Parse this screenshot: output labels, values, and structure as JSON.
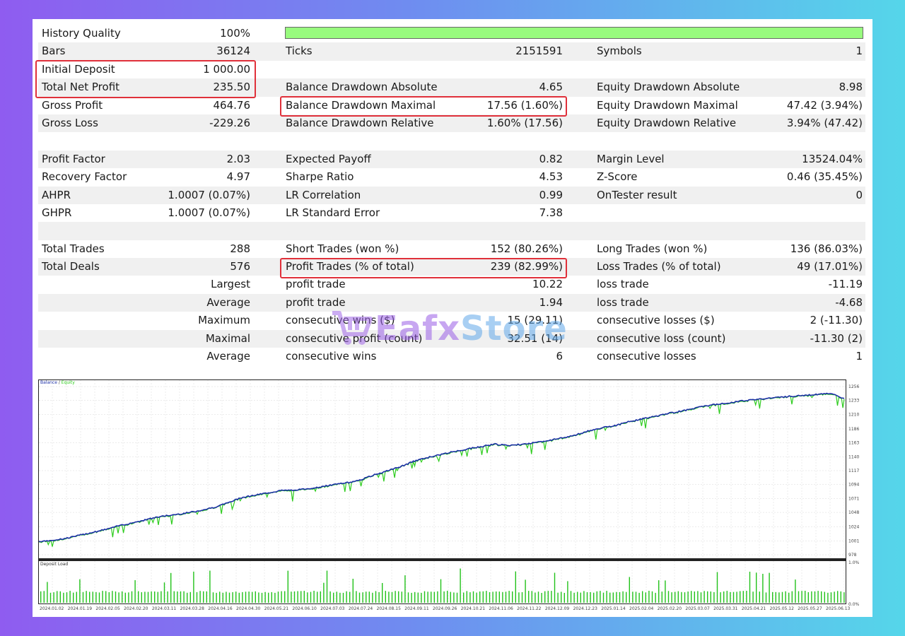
{
  "rows": [
    {
      "l1": "History Quality",
      "v1": "100%",
      "bar": true
    },
    {
      "l1": "Bars",
      "v1": "36124",
      "l2": "Ticks",
      "v2": "2151591",
      "l3": "Symbols",
      "v3": "1"
    },
    {
      "l1": "Initial Deposit",
      "v1": "1 000.00"
    },
    {
      "l1": "Total Net Profit",
      "v1": "235.50",
      "l2": "Balance Drawdown Absolute",
      "v2": "4.65",
      "l3": "Equity Drawdown Absolute",
      "v3": "8.98"
    },
    {
      "l1": "Gross Profit",
      "v1": "464.76",
      "l2": "Balance Drawdown Maximal",
      "v2": "17.56 (1.60%)",
      "l3": "Equity Drawdown Maximal",
      "v3": "47.42 (3.94%)"
    },
    {
      "l1": "Gross Loss",
      "v1": "-229.26",
      "l2": "Balance Drawdown Relative",
      "v2": "1.60% (17.56)",
      "l3": "Equity Drawdown Relative",
      "v3": "3.94% (47.42)"
    },
    {},
    {
      "l1": "Profit Factor",
      "v1": "2.03",
      "l2": "Expected Payoff",
      "v2": "0.82",
      "l3": "Margin Level",
      "v3": "13524.04%"
    },
    {
      "l1": "Recovery Factor",
      "v1": "4.97",
      "l2": "Sharpe Ratio",
      "v2": "4.53",
      "l3": "Z-Score",
      "v3": "0.46 (35.45%)"
    },
    {
      "l1": "AHPR",
      "v1": "1.0007 (0.07%)",
      "l2": "LR Correlation",
      "v2": "0.99",
      "l3": "OnTester result",
      "v3": "0"
    },
    {
      "l1": "GHPR",
      "v1": "1.0007 (0.07%)",
      "l2": "LR Standard Error",
      "v2": "7.38"
    },
    {},
    {
      "l1": "Total Trades",
      "v1": "288",
      "l2": "Short Trades (won %)",
      "v2": "152 (80.26%)",
      "l3": "Long Trades (won %)",
      "v3": "136 (86.03%)"
    },
    {
      "l1": "Total Deals",
      "v1": "576",
      "l2": "Profit Trades (% of total)",
      "v2": "239 (82.99%)",
      "l3": "Loss Trades (% of total)",
      "v3": "49 (17.01%)"
    },
    {
      "sl": "Largest",
      "l2": "profit trade",
      "v2": "10.22",
      "l3": "loss trade",
      "v3": "-11.19"
    },
    {
      "sl": "Average",
      "l2": "profit trade",
      "v2": "1.94",
      "l3": "loss trade",
      "v3": "-4.68"
    },
    {
      "sl": "Maximum",
      "l2": "consecutive wins ($)",
      "v2": "15 (29.11)",
      "l3": "consecutive losses ($)",
      "v3": "2 (-11.30)"
    },
    {
      "sl": "Maximal",
      "l2": "consecutive profit (count)",
      "v2": "32.51 (14)",
      "l3": "consecutive loss (count)",
      "v3": "-11.30 (2)"
    },
    {
      "sl": "Average",
      "l2": "consecutive wins",
      "v2": "6",
      "l3": "consecutive losses",
      "v3": "1"
    }
  ],
  "highlight_color": "#e0303a",
  "quality_bar_color": "#98fb7e",
  "watermark": {
    "part1": "Eafx",
    "part2": "Store",
    "icon": "shopping-cart-icon"
  },
  "chart_data": [
    {
      "type": "line",
      "legend": [
        "Balance",
        "Equity"
      ],
      "series_colors": {
        "Balance": "#1c2fa6",
        "Equity": "#2ecc1e"
      },
      "y_ticks": [
        "1256",
        "1233",
        "1210",
        "1186",
        "1163",
        "1140",
        "1117",
        "1094",
        "1071",
        "1048",
        "1024",
        "1001",
        "978"
      ],
      "ylim": [
        978,
        1256
      ],
      "x_ticks": [
        "2024.01.02",
        "2024.01.19",
        "2024.02.05",
        "2024.02.20",
        "2024.03.11",
        "2024.03.28",
        "2024.04.16",
        "2024.04.30",
        "2024.05.21",
        "2024.06.10",
        "2024.07.03",
        "2024.07.24",
        "2024.08.15",
        "2024.09.11",
        "2024.09.26",
        "2024.10.21",
        "2024.11.06",
        "2024.11.22",
        "2024.12.09",
        "2024.12.23",
        "2025.01.14",
        "2025.02.04",
        "2025.02.20",
        "2025.03.07",
        "2025.03.31",
        "2025.04.21",
        "2025.05.12",
        "2025.05.27",
        "2025.06.13"
      ],
      "balance": [
        1000,
        1002,
        1005,
        1010,
        1015,
        1020,
        1026,
        1031,
        1036,
        1041,
        1044,
        1047,
        1051,
        1056,
        1063,
        1072,
        1076,
        1080,
        1084,
        1085,
        1087,
        1090,
        1094,
        1097,
        1102,
        1110,
        1117,
        1124,
        1133,
        1139,
        1144,
        1149,
        1153,
        1157,
        1161,
        1158,
        1161,
        1163,
        1167,
        1171,
        1176,
        1183,
        1188,
        1192,
        1198,
        1203,
        1207,
        1212,
        1216,
        1221,
        1225,
        1228,
        1231,
        1234,
        1236,
        1238,
        1240,
        1241,
        1243,
        1245,
        1236
      ]
    },
    {
      "type": "bar",
      "title": "Deposit Load",
      "y_ticks": [
        "1.0%",
        "0.0%"
      ],
      "ylim": [
        0,
        1.0
      ]
    }
  ]
}
